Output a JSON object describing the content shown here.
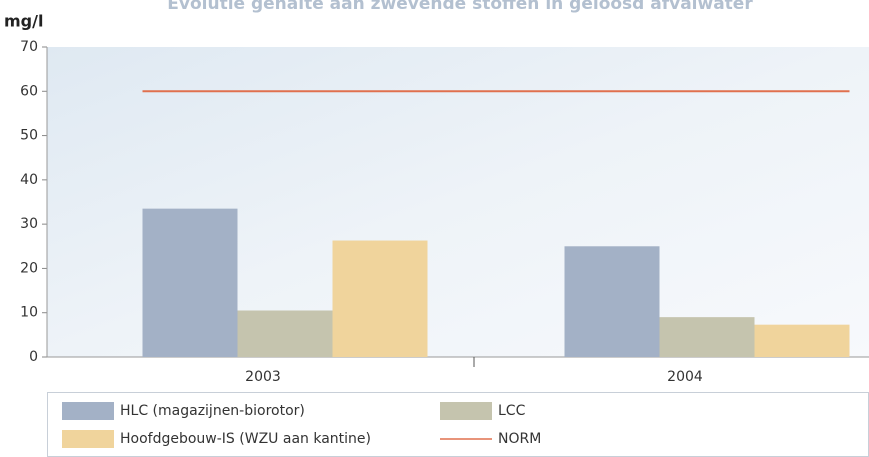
{
  "chart_data": {
    "type": "bar",
    "title": "Evolutie gehalte aan zwevende stoffen in geloosd afvalwater",
    "y_label": "mg/l",
    "categories": [
      "2003",
      "2004"
    ],
    "series": [
      {
        "name": "HLC (magazijnen-biorotor)",
        "color": "#a3b1c6",
        "values": [
          33.5,
          25
        ]
      },
      {
        "name": "LCC",
        "color": "#c5c4ae",
        "values": [
          10.5,
          9
        ]
      },
      {
        "name": "Hoofdgebouw-IS (WZU aan kantine)",
        "color": "#f0d49c",
        "values": [
          26.3,
          7.3
        ]
      },
      {
        "name": "NORM",
        "color": "#e0704e",
        "type": "line",
        "values": [
          60,
          60
        ]
      }
    ],
    "ylim": [
      0,
      70
    ],
    "yticks": [
      0,
      10,
      20,
      30,
      40,
      50,
      60,
      70
    ]
  }
}
